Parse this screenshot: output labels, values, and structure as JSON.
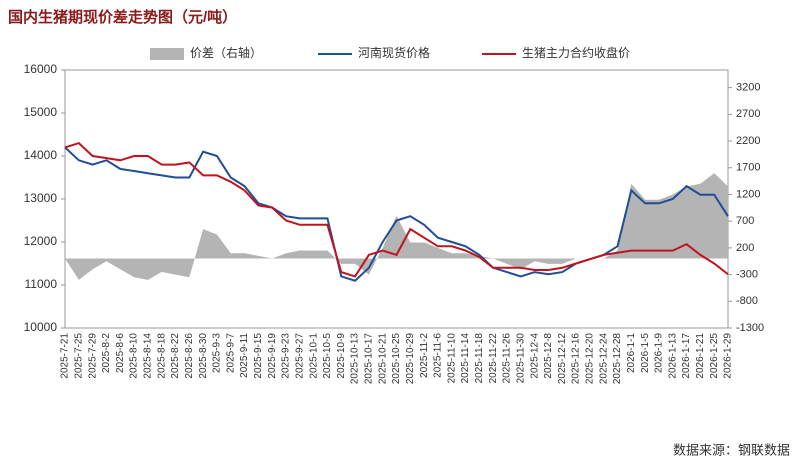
{
  "chart_data": {
    "type": "line",
    "title": "国内生猪期现价差走势图（元/吨）",
    "source": "数据来源：钢联数据",
    "categories": [
      "2025-7-21",
      "2025-7-25",
      "2025-7-29",
      "2025-8-2",
      "2025-8-6",
      "2025-8-10",
      "2025-8-14",
      "2025-8-18",
      "2025-8-22",
      "2025-8-26",
      "2025-8-30",
      "2025-9-3",
      "2025-9-7",
      "2025-9-11",
      "2025-9-15",
      "2025-9-19",
      "2025-9-23",
      "2025-9-27",
      "2025-10-1",
      "2025-10-5",
      "2025-10-9",
      "2025-10-13",
      "2025-10-17",
      "2025-10-21",
      "2025-10-25",
      "2025-10-29",
      "2025-11-2",
      "2025-11-6",
      "2025-11-10",
      "2025-11-14",
      "2025-11-18",
      "2025-11-22",
      "2025-11-26",
      "2025-11-30",
      "2025-12-4",
      "2025-12-8",
      "2025-12-12",
      "2025-12-16",
      "2025-12-20",
      "2025-12-24",
      "2025-12-28",
      "2026-1-1",
      "2026-1-5",
      "2026-1-9",
      "2026-1-13",
      "2026-1-17",
      "2026-1-21",
      "2026-1-25",
      "2026-1-29"
    ],
    "series": [
      {
        "name": "价差（右轴）",
        "type": "area",
        "axis": "y2",
        "color": "#b4b4b4",
        "values": [
          0,
          -400,
          -200,
          -50,
          -200,
          -350,
          -400,
          -250,
          -300,
          -350,
          550,
          450,
          100,
          100,
          50,
          0,
          100,
          150,
          150,
          150,
          -100,
          -100,
          -300,
          200,
          800,
          300,
          300,
          200,
          100,
          100,
          50,
          0,
          -100,
          -200,
          -50,
          -100,
          -100,
          0,
          0,
          0,
          150,
          1400,
          1100,
          1100,
          1200,
          1350,
          1400,
          1600,
          1350
        ]
      },
      {
        "name": "河南现货价格",
        "type": "line",
        "color": "#1f4e96",
        "values": [
          14200,
          13900,
          13800,
          13900,
          13700,
          13650,
          13600,
          13550,
          13500,
          13500,
          14100,
          14000,
          13500,
          13300,
          12900,
          12800,
          12600,
          12550,
          12550,
          12550,
          11200,
          11100,
          11400,
          12000,
          12500,
          12600,
          12400,
          12100,
          12000,
          11900,
          11700,
          11400,
          11300,
          11200,
          11300,
          11250,
          11300,
          11500,
          11600,
          11700,
          11900,
          13200,
          12900,
          12900,
          13000,
          13300,
          13100,
          13100,
          12600
        ]
      },
      {
        "name": "生猪主力合约收盘价",
        "type": "line",
        "color": "#c0141e",
        "values": [
          14200,
          14300,
          14000,
          13950,
          13900,
          14000,
          14000,
          13800,
          13800,
          13850,
          13550,
          13550,
          13400,
          13200,
          12850,
          12800,
          12500,
          12400,
          12400,
          12400,
          11300,
          11200,
          11700,
          11800,
          11700,
          12300,
          12100,
          11900,
          11900,
          11800,
          11650,
          11400,
          11400,
          11400,
          11350,
          11350,
          11400,
          11500,
          11600,
          11700,
          11750,
          11800,
          11800,
          11800,
          11800,
          11950,
          11700,
          11500,
          11250
        ]
      }
    ],
    "ylim": [
      10000,
      16000
    ],
    "yticks": [
      10000,
      11000,
      12000,
      13000,
      14000,
      15000,
      16000
    ],
    "y2lim": [
      -1300,
      3530
    ],
    "y2ticks": [
      -1300,
      -800,
      -300,
      200,
      700,
      1200,
      1700,
      2200,
      2700,
      3200
    ]
  }
}
